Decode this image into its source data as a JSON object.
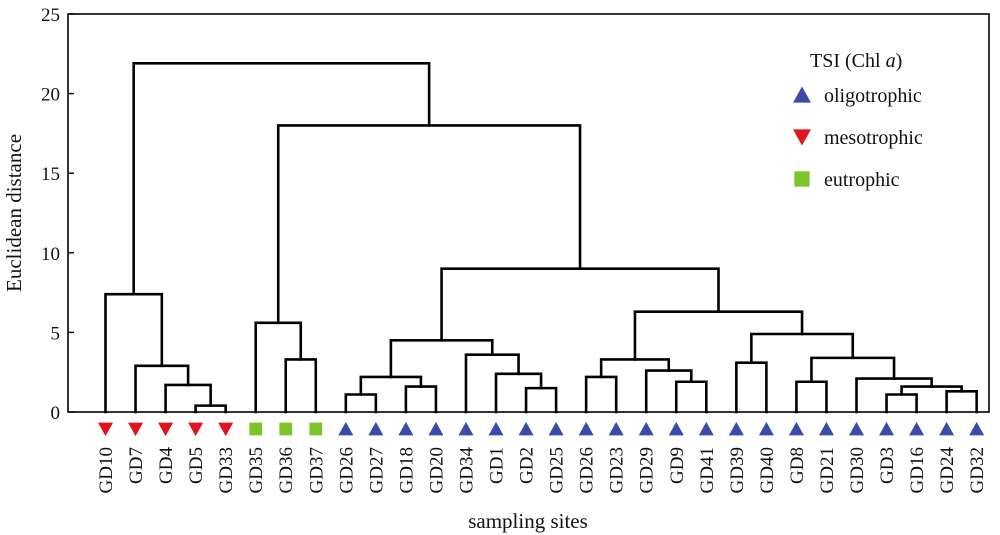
{
  "chart_data": {
    "type": "dendrogram",
    "xlabel": "sampling sites",
    "ylabel": "Euclidean distance",
    "ylim": [
      0,
      25
    ],
    "yticks": [
      "0",
      "5",
      "10",
      "15",
      "20",
      "25"
    ],
    "legend": {
      "title_prefix": "TSI (Chl ",
      "title_italic": "a",
      "title_suffix": ")",
      "position": "top-right",
      "entries": [
        {
          "label": "oligotrophic",
          "marker": "triangle-up",
          "color": "#3a4ba8"
        },
        {
          "label": "mesotrophic",
          "marker": "triangle-down",
          "color": "#e0141e"
        },
        {
          "label": "eutrophic",
          "marker": "square",
          "color": "#7dc42a"
        }
      ]
    },
    "leaves": [
      {
        "label": "GD10",
        "class": "mesotrophic"
      },
      {
        "label": "GD7",
        "class": "mesotrophic"
      },
      {
        "label": "GD4",
        "class": "mesotrophic"
      },
      {
        "label": "GD5",
        "class": "mesotrophic"
      },
      {
        "label": "GD33",
        "class": "mesotrophic"
      },
      {
        "label": "GD35",
        "class": "eutrophic"
      },
      {
        "label": "GD36",
        "class": "eutrophic"
      },
      {
        "label": "GD37",
        "class": "eutrophic"
      },
      {
        "label": "GD26",
        "class": "oligotrophic"
      },
      {
        "label": "GD27",
        "class": "oligotrophic"
      },
      {
        "label": "GD18",
        "class": "oligotrophic"
      },
      {
        "label": "GD20",
        "class": "oligotrophic"
      },
      {
        "label": "GD34",
        "class": "oligotrophic"
      },
      {
        "label": "GD1",
        "class": "oligotrophic"
      },
      {
        "label": "GD2",
        "class": "oligotrophic"
      },
      {
        "label": "GD25",
        "class": "oligotrophic"
      },
      {
        "label": "GD26",
        "class": "oligotrophic"
      },
      {
        "label": "GD23",
        "class": "oligotrophic"
      },
      {
        "label": "GD29",
        "class": "oligotrophic"
      },
      {
        "label": "GD9",
        "class": "oligotrophic"
      },
      {
        "label": "GD41",
        "class": "oligotrophic"
      },
      {
        "label": "GD39",
        "class": "oligotrophic"
      },
      {
        "label": "GD40",
        "class": "oligotrophic"
      },
      {
        "label": "GD8",
        "class": "oligotrophic"
      },
      {
        "label": "GD21",
        "class": "oligotrophic"
      },
      {
        "label": "GD30",
        "class": "oligotrophic"
      },
      {
        "label": "GD3",
        "class": "oligotrophic"
      },
      {
        "label": "GD16",
        "class": "oligotrophic"
      },
      {
        "label": "GD24",
        "class": "oligotrophic"
      },
      {
        "label": "GD32",
        "class": "oligotrophic"
      }
    ],
    "merges": [
      {
        "a": 3,
        "b": 4,
        "h": 0.4
      },
      {
        "a": 2,
        "b": "m0",
        "h": 1.7
      },
      {
        "a": 1,
        "b": "m1",
        "h": 2.9
      },
      {
        "a": 0,
        "b": "m2",
        "h": 7.4
      },
      {
        "a": 6,
        "b": 7,
        "h": 3.3
      },
      {
        "a": 5,
        "b": "m4",
        "h": 5.6
      },
      {
        "a": 8,
        "b": 9,
        "h": 1.1
      },
      {
        "a": 10,
        "b": 11,
        "h": 1.6
      },
      {
        "a": "m6",
        "b": "m7",
        "h": 2.2
      },
      {
        "a": 14,
        "b": 15,
        "h": 1.5
      },
      {
        "a": 13,
        "b": "m9",
        "h": 2.4
      },
      {
        "a": 12,
        "b": "m10",
        "h": 3.6
      },
      {
        "a": "m8",
        "b": "m11",
        "h": 4.5
      },
      {
        "a": 16,
        "b": 17,
        "h": 2.2
      },
      {
        "a": 19,
        "b": 20,
        "h": 1.9
      },
      {
        "a": 18,
        "b": "m14",
        "h": 2.6
      },
      {
        "a": "m13",
        "b": "m15",
        "h": 3.3
      },
      {
        "a": 21,
        "b": 22,
        "h": 3.1
      },
      {
        "a": 23,
        "b": 24,
        "h": 1.9
      },
      {
        "a": 26,
        "b": 27,
        "h": 1.1
      },
      {
        "a": 28,
        "b": 29,
        "h": 1.3
      },
      {
        "a": "m19",
        "b": "m20",
        "h": 1.6
      },
      {
        "a": 25,
        "b": "m21",
        "h": 2.1
      },
      {
        "a": "m18",
        "b": "m22",
        "h": 3.4
      },
      {
        "a": "m17",
        "b": "m23",
        "h": 4.9
      },
      {
        "a": "m16",
        "b": "m24",
        "h": 6.3
      },
      {
        "a": "m12",
        "b": "m25",
        "h": 9.0
      },
      {
        "a": "m5",
        "b": "m26",
        "h": 18.0
      },
      {
        "a": "m3",
        "b": "m27",
        "h": 21.9
      }
    ]
  }
}
